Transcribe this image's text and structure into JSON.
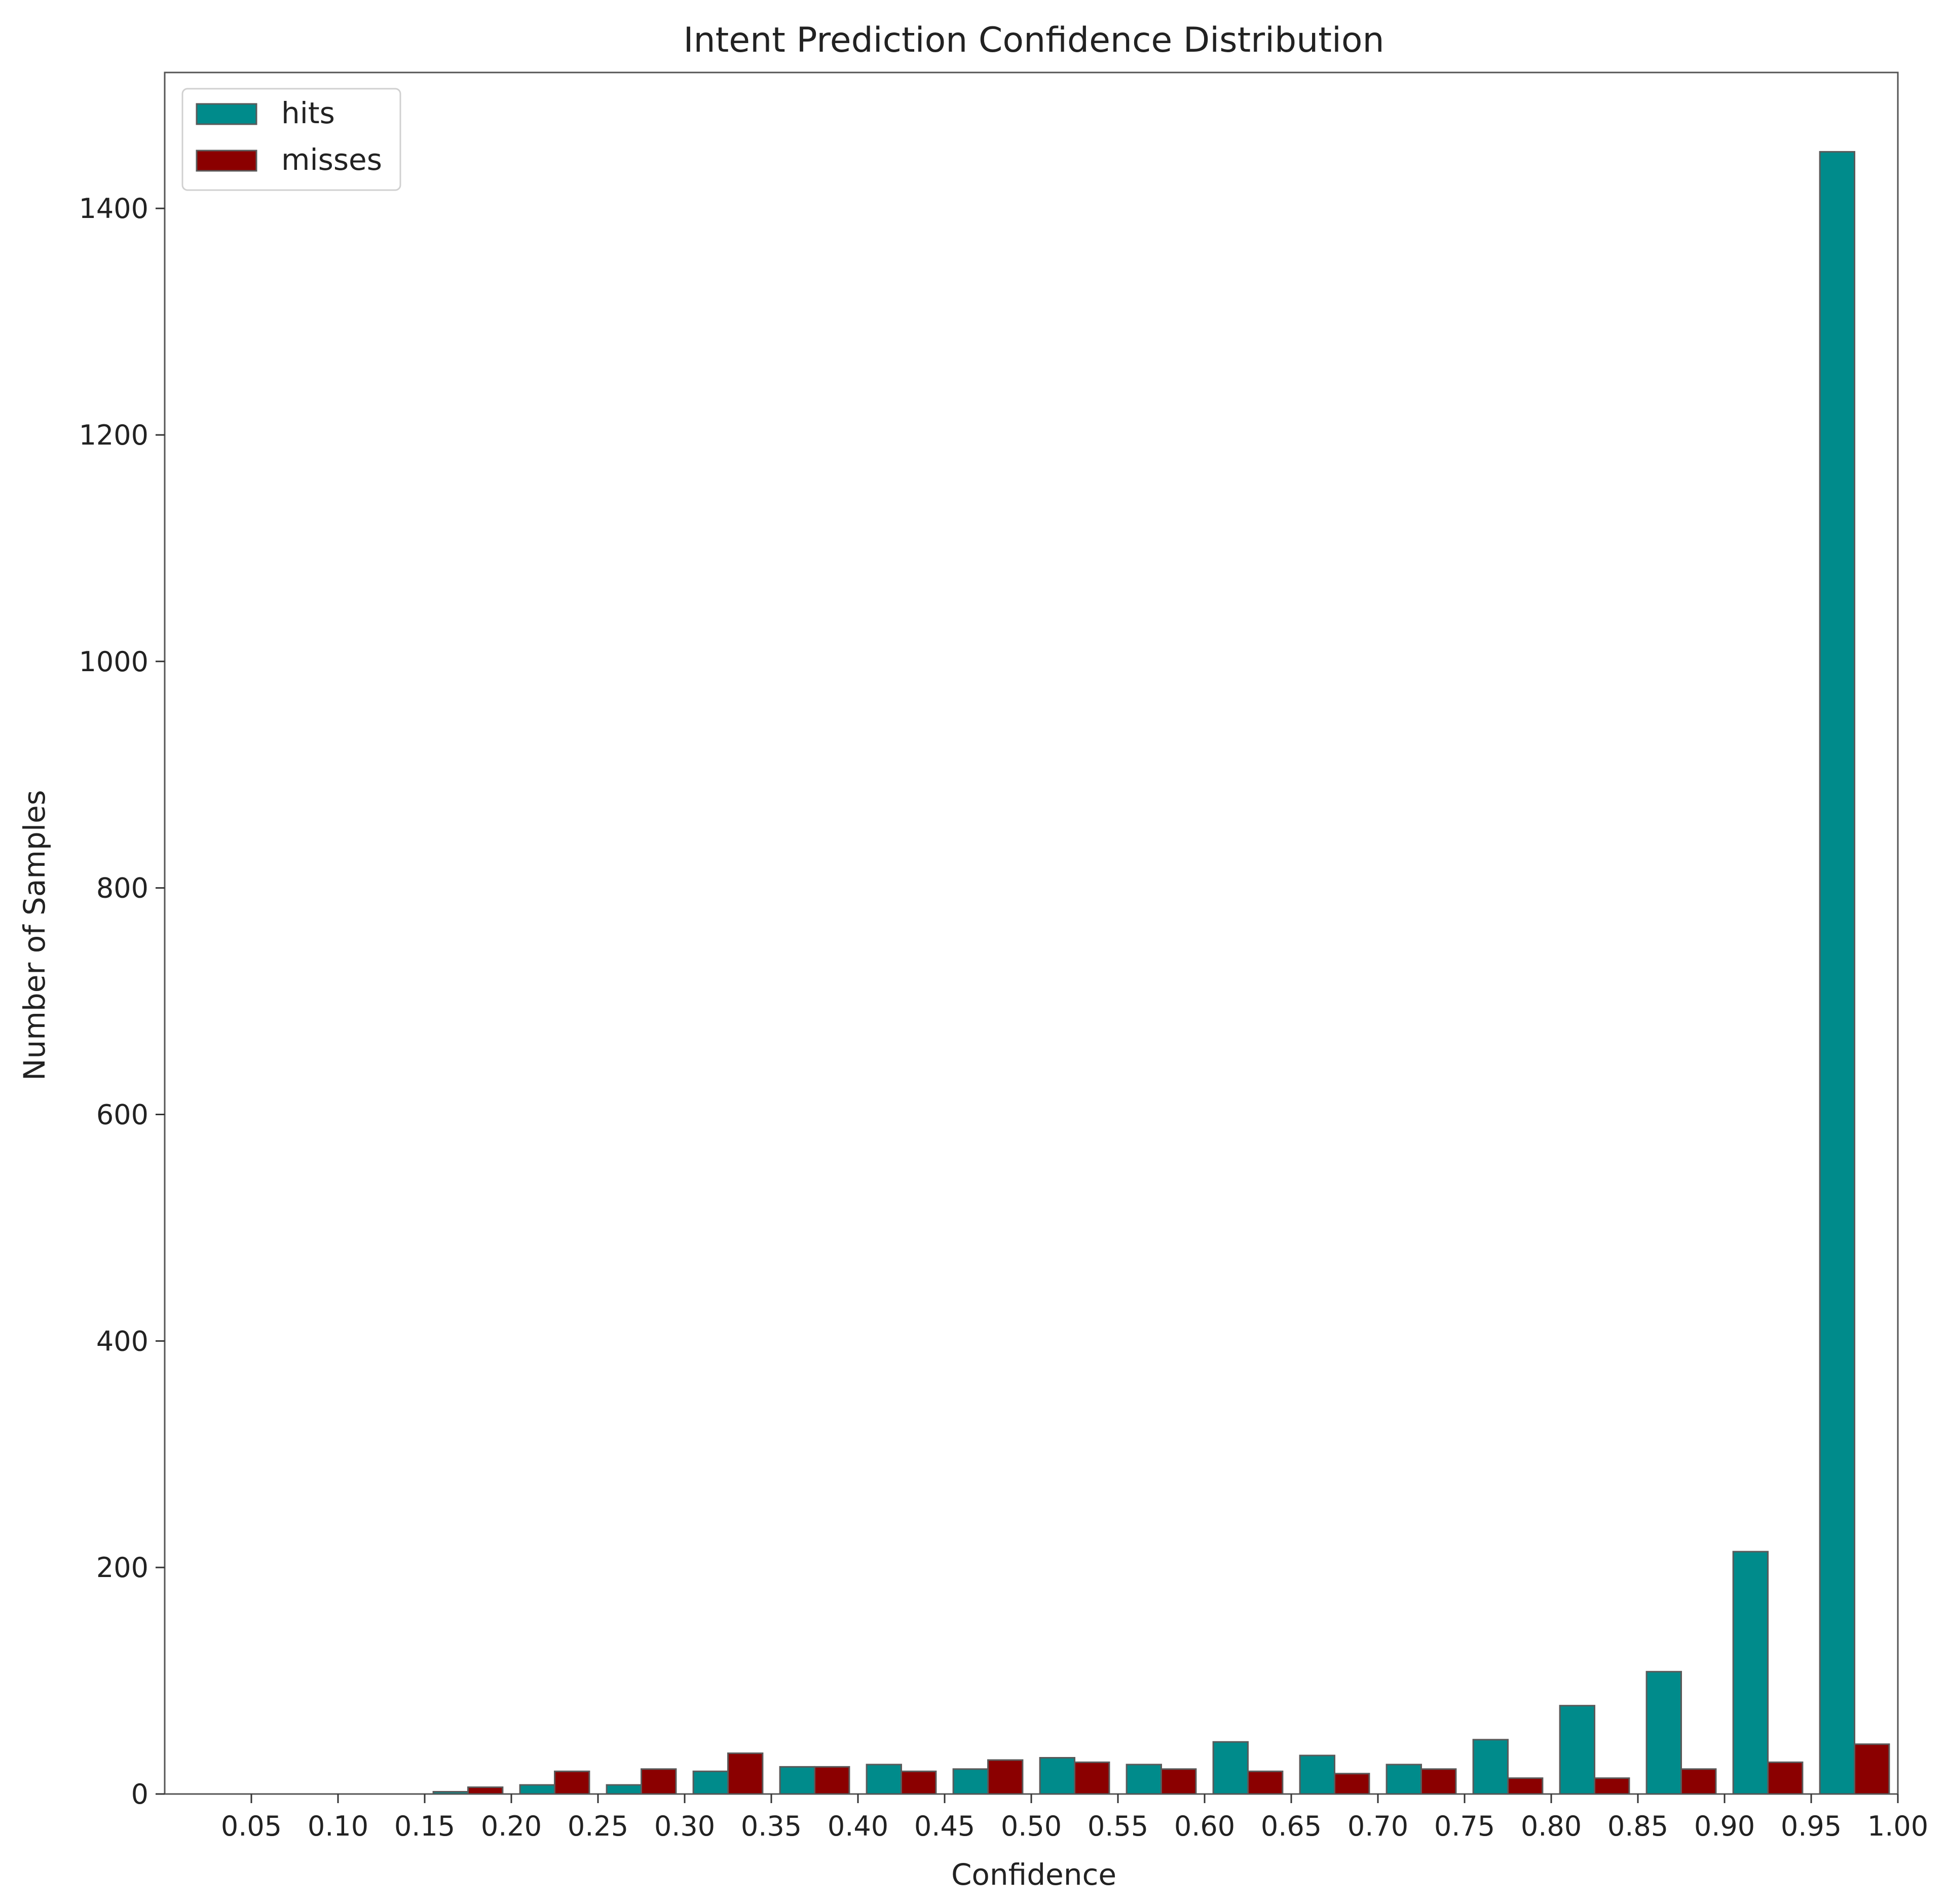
{
  "chart_data": {
    "type": "bar",
    "title": "Intent Prediction Confidence Distribution",
    "xlabel": "Confidence",
    "ylabel": "Number of Samples",
    "x_ticks": [
      "0.05",
      "0.10",
      "0.15",
      "0.20",
      "0.25",
      "0.30",
      "0.35",
      "0.40",
      "0.45",
      "0.50",
      "0.55",
      "0.60",
      "0.65",
      "0.70",
      "0.75",
      "0.80",
      "0.85",
      "0.90",
      "0.95",
      "1.00"
    ],
    "y_ticks": [
      0,
      200,
      400,
      600,
      800,
      1000,
      1200,
      1400
    ],
    "xlim": [
      0.0,
      1.0
    ],
    "ylim": [
      0,
      1520
    ],
    "bin_width": 0.05,
    "bin_right_edges": [
      0.05,
      0.1,
      0.15,
      0.2,
      0.25,
      0.3,
      0.35,
      0.4,
      0.45,
      0.5,
      0.55,
      0.6,
      0.65,
      0.7,
      0.75,
      0.8,
      0.85,
      0.9,
      0.95,
      1.0
    ],
    "legend_position": "top-left",
    "grid": false,
    "series": [
      {
        "name": "hits",
        "color": "#008b8b",
        "values": [
          0,
          0,
          0,
          2,
          8,
          8,
          20,
          24,
          26,
          22,
          32,
          26,
          46,
          34,
          26,
          48,
          78,
          108,
          214,
          1450
        ]
      },
      {
        "name": "misses",
        "color": "#8b0000",
        "values": [
          0,
          0,
          0,
          6,
          20,
          22,
          36,
          24,
          20,
          30,
          28,
          22,
          20,
          18,
          22,
          14,
          14,
          22,
          28,
          44
        ]
      }
    ]
  }
}
